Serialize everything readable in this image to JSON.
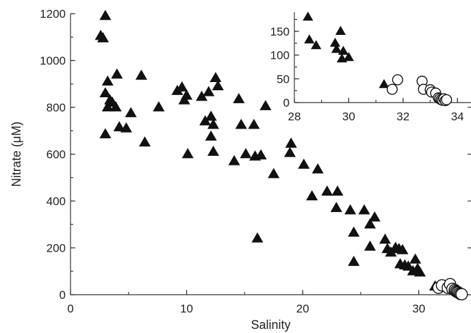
{
  "chart_data": [
    {
      "type": "scatter",
      "title": "",
      "xlabel": "Salinity",
      "ylabel": "Nitrate (μM)",
      "xlim": [
        0,
        34.5
      ],
      "ylim": [
        0,
        1200
      ],
      "x_ticks": [
        "0",
        "10",
        "20",
        "30"
      ],
      "y_ticks": [
        "0",
        "200",
        "400",
        "600",
        "800",
        "1000",
        "1200"
      ],
      "grid": false,
      "series": [
        {
          "marker": "filled-triangle",
          "points": [
            [
              2.6,
              1105
            ],
            [
              2.8,
              1095
            ],
            [
              3.0,
              1190
            ],
            [
              3.2,
              910
            ],
            [
              3.0,
              860
            ],
            [
              3.4,
              830
            ],
            [
              3.2,
              800
            ],
            [
              3.6,
              820
            ],
            [
              3.9,
              800
            ],
            [
              3.0,
              685
            ],
            [
              4.0,
              940
            ],
            [
              4.2,
              715
            ],
            [
              4.8,
              710
            ],
            [
              5.2,
              775
            ],
            [
              6.1,
              935
            ],
            [
              6.4,
              650
            ],
            [
              7.6,
              800
            ],
            [
              9.2,
              870
            ],
            [
              9.6,
              885
            ],
            [
              9.8,
              830
            ],
            [
              10.0,
              850
            ],
            [
              10.1,
              600
            ],
            [
              11.3,
              845
            ],
            [
              11.6,
              740
            ],
            [
              11.9,
              865
            ],
            [
              12.1,
              760
            ],
            [
              12.1,
              675
            ],
            [
              12.3,
              725
            ],
            [
              12.3,
              610
            ],
            [
              12.5,
              925
            ],
            [
              12.7,
              890
            ],
            [
              14.1,
              570
            ],
            [
              14.5,
              835
            ],
            [
              14.7,
              725
            ],
            [
              15.1,
              600
            ],
            [
              15.8,
              725
            ],
            [
              15.9,
              590
            ],
            [
              16.1,
              240
            ],
            [
              16.4,
              595
            ],
            [
              16.8,
              805
            ],
            [
              17.5,
              515
            ],
            [
              18.9,
              605
            ],
            [
              19.0,
              645
            ],
            [
              20.1,
              555
            ],
            [
              20.8,
              420
            ],
            [
              21.3,
              535
            ],
            [
              22.1,
              440
            ],
            [
              22.9,
              370
            ],
            [
              23.0,
              440
            ],
            [
              24.1,
              360
            ],
            [
              24.4,
              265
            ],
            [
              24.4,
              140
            ],
            [
              25.3,
              360
            ],
            [
              25.8,
              300
            ],
            [
              25.8,
              205
            ],
            [
              26.2,
              330
            ],
            [
              27.1,
              235
            ],
            [
              27.3,
              195
            ],
            [
              27.6,
              180
            ],
            [
              28.0,
              200
            ],
            [
              28.3,
              195
            ],
            [
              28.4,
              130
            ],
            [
              28.6,
              190
            ],
            [
              28.8,
              125
            ],
            [
              29.1,
              120
            ],
            [
              29.5,
              100
            ],
            [
              29.7,
              150
            ],
            [
              29.9,
              110
            ],
            [
              30.1,
              95
            ],
            [
              31.4,
              35
            ]
          ]
        },
        {
          "marker": "open-circle",
          "points": [
            [
              31.7,
              30
            ],
            [
              32.0,
              40
            ],
            [
              32.5,
              30
            ],
            [
              32.7,
              45
            ],
            [
              32.9,
              25
            ],
            [
              33.1,
              20
            ],
            [
              33.2,
              15
            ],
            [
              33.3,
              12
            ],
            [
              33.4,
              10
            ],
            [
              33.5,
              6
            ],
            [
              33.6,
              3
            ],
            [
              33.7,
              2
            ]
          ]
        }
      ]
    },
    {
      "type": "scatter",
      "title": "",
      "xlabel": "",
      "ylabel": "",
      "xlim": [
        28,
        34.5
      ],
      "ylim": [
        0,
        190
      ],
      "x_ticks": [
        "28",
        "30",
        "32",
        "34"
      ],
      "y_ticks": [
        "0",
        "50",
        "100",
        "150"
      ],
      "grid": false,
      "series": [
        {
          "marker": "filled-triangle",
          "points": [
            [
              28.5,
              180
            ],
            [
              28.55,
              132
            ],
            [
              28.8,
              120
            ],
            [
              29.5,
              125
            ],
            [
              29.55,
              112
            ],
            [
              29.7,
              150
            ],
            [
              29.75,
              92
            ],
            [
              29.8,
              108
            ],
            [
              30.0,
              95
            ],
            [
              31.3,
              38
            ]
          ]
        },
        {
          "marker": "open-circle",
          "points": [
            [
              31.6,
              28
            ],
            [
              31.8,
              48
            ],
            [
              32.7,
              45
            ],
            [
              32.75,
              28
            ],
            [
              33.0,
              27
            ],
            [
              33.05,
              22
            ],
            [
              33.2,
              20
            ],
            [
              33.3,
              10
            ],
            [
              33.35,
              8
            ],
            [
              33.4,
              6
            ],
            [
              33.45,
              5
            ],
            [
              33.5,
              8
            ],
            [
              33.55,
              4
            ],
            [
              33.6,
              6
            ]
          ]
        }
      ]
    }
  ]
}
